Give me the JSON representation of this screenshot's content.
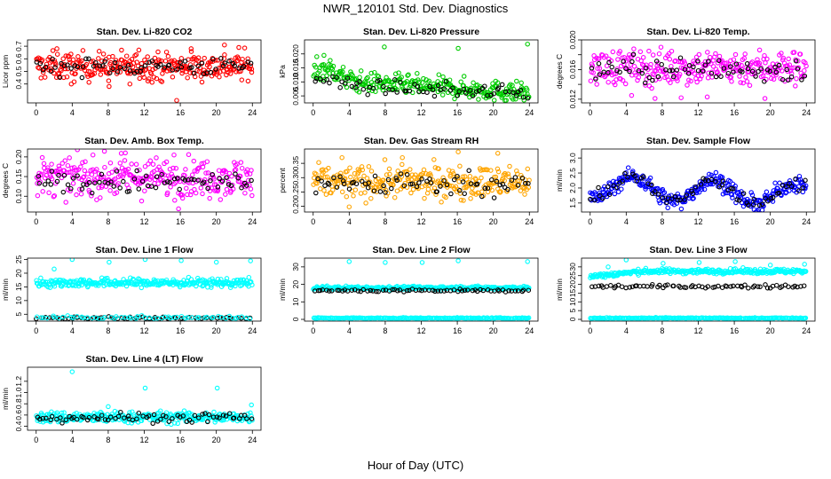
{
  "figure": {
    "title": "NWR_120101  Std. Dev. Diagnostics",
    "xlabel": "Hour of Day (UTC)"
  },
  "chart_data": [
    {
      "type": "scatter",
      "title": "Stan. Dev. Li-820 CO2",
      "ylabel": "Licor ppm",
      "xlim": [
        0,
        24
      ],
      "ylim": [
        0.25,
        0.75
      ],
      "xticks": [
        0,
        4,
        8,
        12,
        16,
        20,
        24
      ],
      "yticks": [
        0.4,
        0.5,
        0.6,
        0.7
      ],
      "ytick_labels": [
        "0.4",
        "0.5",
        "0.6",
        "0.7"
      ],
      "series": [
        {
          "color": "#ff0000",
          "n": 300,
          "pattern": {
            "kind": "flat",
            "base": 0.54,
            "spread": 0.055
          },
          "outliers": [
            [
              3.9,
              0.4
            ],
            [
              8.1,
              0.38
            ],
            [
              15.6,
              0.27
            ],
            [
              20.9,
              0.71
            ],
            [
              2.3,
              0.68
            ],
            [
              11.4,
              0.67
            ],
            [
              17.2,
              0.68
            ],
            [
              22.5,
              0.69
            ],
            [
              10.4,
              0.4
            ]
          ]
        },
        {
          "color": "#000000",
          "n": 70,
          "pattern": {
            "kind": "flat",
            "base": 0.54,
            "spread": 0.035
          }
        }
      ]
    },
    {
      "type": "scatter",
      "title": "Stan. Dev. Li-820 Pressure",
      "ylabel": "kPa",
      "xlim": [
        0,
        24
      ],
      "ylim": [
        0.0025,
        0.025
      ],
      "xticks": [
        0,
        4,
        8,
        12,
        16,
        20,
        24
      ],
      "yticks": [
        0.005,
        0.01,
        0.015,
        0.02
      ],
      "ytick_labels": [
        "0.005",
        "0.010",
        "0.015",
        "0.020"
      ],
      "series": [
        {
          "color": "#00cc00",
          "n": 300,
          "pattern": {
            "kind": "decline",
            "base": 0.011,
            "end": 0.006,
            "spread": 0.0018,
            "hump": 0.004
          },
          "outliers": [
            [
              7.9,
              0.0225
            ],
            [
              23.8,
              0.0235
            ],
            [
              16.1,
              0.022
            ],
            [
              0.4,
              0.019
            ],
            [
              1.2,
              0.0195
            ]
          ]
        },
        {
          "color": "#000000",
          "n": 70,
          "pattern": {
            "kind": "decline",
            "base": 0.009,
            "end": 0.006,
            "spread": 0.0012,
            "hump": 0.002
          }
        }
      ]
    },
    {
      "type": "scatter",
      "title": "Stan. Dev. Li-820 Temp.",
      "ylabel": "degrees C",
      "xlim": [
        0,
        24
      ],
      "ylim": [
        0.0115,
        0.02
      ],
      "xticks": [
        0,
        4,
        8,
        12,
        16,
        20,
        24
      ],
      "yticks": [
        0.012,
        0.014,
        0.016,
        0.018,
        0.02
      ],
      "ytick_labels": [
        "0.012",
        "",
        "0.016",
        "",
        "0.020"
      ],
      "series": [
        {
          "color": "#ff00ff",
          "n": 300,
          "pattern": {
            "kind": "flat",
            "base": 0.0163,
            "spread": 0.0012
          },
          "outliers": [
            [
              7.2,
              0.0121
            ],
            [
              4.6,
              0.0125
            ],
            [
              10.1,
              0.0122
            ],
            [
              19.4,
              0.0121
            ],
            [
              13.0,
              0.0123
            ]
          ]
        },
        {
          "color": "#000000",
          "n": 70,
          "pattern": {
            "kind": "flat",
            "base": 0.016,
            "spread": 0.0009
          }
        }
      ]
    },
    {
      "type": "scatter",
      "title": "Stan. Dev. Amb. Box Temp.",
      "ylabel": "degrees C",
      "xlim": [
        0,
        24
      ],
      "ylim": [
        0.06,
        0.22
      ],
      "xticks": [
        0,
        4,
        8,
        12,
        16,
        20,
        24
      ],
      "yticks": [
        0.1,
        0.15,
        0.2
      ],
      "ytick_labels": [
        "0.10",
        "0.15",
        "0.20"
      ],
      "series": [
        {
          "color": "#ff00ff",
          "n": 300,
          "pattern": {
            "kind": "flat",
            "base": 0.148,
            "spread": 0.024
          },
          "outliers": [
            [
              9.9,
              0.21
            ],
            [
              15.3,
              0.205
            ],
            [
              15.8,
              0.068
            ],
            [
              6.3,
              0.205
            ]
          ]
        },
        {
          "color": "#000000",
          "n": 70,
          "pattern": {
            "kind": "flat",
            "base": 0.135,
            "spread": 0.015
          }
        }
      ]
    },
    {
      "type": "scatter",
      "title": "Stan. Dev. Gas Stream RH",
      "ylabel": "percent",
      "xlim": [
        0,
        24
      ],
      "ylim": [
        0.18,
        0.4
      ],
      "xticks": [
        0,
        4,
        8,
        12,
        16,
        20,
        24
      ],
      "yticks": [
        0.2,
        0.25,
        0.3,
        0.35
      ],
      "ytick_labels": [
        "0.20",
        "0.25",
        "0.30",
        "0.35"
      ],
      "series": [
        {
          "color": "#ffa500",
          "n": 300,
          "pattern": {
            "kind": "flat",
            "base": 0.284,
            "spread": 0.028
          },
          "outliers": [
            [
              4.0,
              0.198
            ],
            [
              3.2,
              0.37
            ],
            [
              16.1,
              0.39
            ],
            [
              20.5,
              0.385
            ],
            [
              9.9,
              0.37
            ]
          ]
        },
        {
          "color": "#000000",
          "n": 70,
          "pattern": {
            "kind": "flat",
            "base": 0.28,
            "spread": 0.02
          }
        }
      ]
    },
    {
      "type": "scatter",
      "title": "Stan. Dev. Sample Flow",
      "ylabel": "ml/min",
      "xlim": [
        0,
        24
      ],
      "ylim": [
        1.2,
        3.3
      ],
      "xticks": [
        0,
        4,
        8,
        12,
        16,
        20,
        24
      ],
      "yticks": [
        1.5,
        2.0,
        2.5,
        3.0
      ],
      "ytick_labels": [
        "1.5",
        "2.0",
        "2.5",
        "3.0"
      ],
      "series": [
        {
          "color": "#0000ff",
          "n": 300,
          "pattern": {
            "kind": "wave",
            "base": 2.05,
            "amp": 0.38,
            "spread": 0.14,
            "period": 9,
            "phase": -2.5,
            "trend": -0.012
          }
        },
        {
          "color": "#000000",
          "n": 70,
          "pattern": {
            "kind": "wave",
            "base": 2.05,
            "amp": 0.38,
            "spread": 0.11,
            "period": 9,
            "phase": -2.5,
            "trend": -0.012
          }
        }
      ]
    },
    {
      "type": "scatter",
      "title": "Stan. Dev. Line 1 Flow",
      "ylabel": "ml/min",
      "xlim": [
        0,
        24
      ],
      "ylim": [
        2.5,
        25.5
      ],
      "xticks": [
        0,
        4,
        8,
        12,
        16,
        20,
        24
      ],
      "yticks": [
        5,
        10,
        15,
        20,
        25
      ],
      "ytick_labels": [
        "5",
        "10",
        "15",
        "20",
        "25"
      ],
      "series": [
        {
          "color": "#00ffff",
          "n": 300,
          "pattern": {
            "kind": "flat",
            "base": 16.5,
            "spread": 0.8
          },
          "outliers": [
            [
              2.0,
              21.5
            ],
            [
              4.0,
              25.0
            ],
            [
              8.1,
              24.0
            ],
            [
              12.1,
              25.0
            ],
            [
              16.1,
              24.6
            ],
            [
              20.0,
              24.0
            ],
            [
              23.8,
              24.5
            ]
          ]
        },
        {
          "color": "#000000",
          "n": 70,
          "pattern": {
            "kind": "flat",
            "base": 3.6,
            "spread": 0.25
          }
        },
        {
          "color": "#00ffff",
          "n": 60,
          "pattern": {
            "kind": "flat",
            "base": 3.8,
            "spread": 0.25
          }
        }
      ]
    },
    {
      "type": "scatter",
      "title": "Stan. Dev. Line 2 Flow",
      "ylabel": "ml/min",
      "xlim": [
        0,
        24
      ],
      "ylim": [
        -1,
        35
      ],
      "xticks": [
        0,
        4,
        8,
        12,
        16,
        20,
        24
      ],
      "yticks": [
        0,
        10,
        20,
        30
      ],
      "ytick_labels": [
        "0",
        "10",
        "20",
        "30"
      ],
      "series": [
        {
          "color": "#00ffff",
          "n": 300,
          "pattern": {
            "kind": "flat",
            "base": 18.0,
            "spread": 0.5
          },
          "outliers": [
            [
              4.0,
              33.0
            ],
            [
              8.0,
              32.5
            ],
            [
              12.1,
              32.5
            ],
            [
              16.1,
              33.5
            ],
            [
              23.8,
              33.0
            ]
          ]
        },
        {
          "color": "#00ffff",
          "n": 200,
          "pattern": {
            "kind": "flat",
            "base": 0.7,
            "spread": 0.15
          }
        },
        {
          "color": "#000000",
          "n": 70,
          "pattern": {
            "kind": "flat",
            "base": 16.5,
            "spread": 0.4
          }
        }
      ]
    },
    {
      "type": "scatter",
      "title": "Stan. Dev. Line 3 Flow",
      "ylabel": "ml/min",
      "xlim": [
        0,
        24
      ],
      "ylim": [
        -1,
        35
      ],
      "xticks": [
        0,
        4,
        8,
        12,
        16,
        20,
        24
      ],
      "yticks": [
        0,
        5,
        10,
        15,
        20,
        25,
        30
      ],
      "ytick_labels": [
        "0",
        "5",
        "10",
        "15",
        "20",
        "25",
        "30"
      ],
      "series": [
        {
          "color": "#00ffff",
          "n": 300,
          "pattern": {
            "kind": "rise",
            "base": 24.5,
            "end": 27.5,
            "spread": 0.7
          },
          "outliers": [
            [
              2.0,
              30.0
            ],
            [
              4.0,
              34.0
            ],
            [
              8.1,
              32.0
            ],
            [
              12.1,
              32.5
            ],
            [
              16.1,
              33.0
            ],
            [
              20.0,
              31.0
            ],
            [
              23.8,
              31.5
            ]
          ]
        },
        {
          "color": "#00ffff",
          "n": 200,
          "pattern": {
            "kind": "flat",
            "base": 0.7,
            "spread": 0.15
          }
        },
        {
          "color": "#000000",
          "n": 70,
          "pattern": {
            "kind": "flat",
            "base": 18.8,
            "spread": 0.5
          }
        }
      ]
    },
    {
      "type": "scatter",
      "title": "Stan. Dev. Line 4 (LT) Flow",
      "ylabel": "ml/min",
      "xlim": [
        0,
        24
      ],
      "ylim": [
        0.33,
        1.45
      ],
      "xticks": [
        0,
        4,
        8,
        12,
        16,
        20,
        24
      ],
      "yticks": [
        0.4,
        0.6,
        0.8,
        1.0,
        1.2
      ],
      "ytick_labels": [
        "0.4",
        "0.6",
        "0.8",
        "1.0",
        "1.2"
      ],
      "series": [
        {
          "color": "#00ffff",
          "n": 300,
          "pattern": {
            "kind": "flat",
            "base": 0.56,
            "spread": 0.05
          },
          "outliers": [
            [
              4.0,
              1.37
            ],
            [
              12.1,
              1.08
            ],
            [
              20.1,
              1.08
            ],
            [
              23.9,
              0.78
            ],
            [
              8.0,
              0.75
            ]
          ]
        },
        {
          "color": "#000000",
          "n": 70,
          "pattern": {
            "kind": "flat",
            "base": 0.56,
            "spread": 0.045
          }
        }
      ]
    }
  ]
}
